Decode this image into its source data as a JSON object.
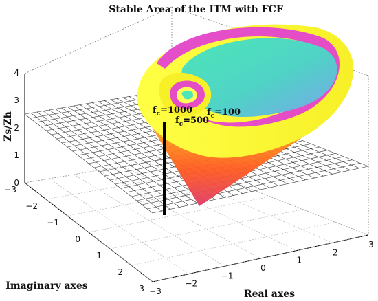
{
  "chart_data": {
    "type": "surface3d",
    "title": "Stable Area of the ITM with FCF",
    "xlabel": "Real axes",
    "ylabel": "Imaginary axes",
    "zlabel": "Zs/Zh",
    "xlim": [
      -3,
      3
    ],
    "ylim": [
      -3,
      3
    ],
    "zlim": [
      0,
      4
    ],
    "xticks": [
      "−3",
      "−2",
      "−1",
      "0",
      "1",
      "2",
      "3"
    ],
    "yticks": [
      "−3",
      "−2",
      "−1",
      "0",
      "1",
      "2",
      "3"
    ],
    "zticks": [
      "0",
      "1",
      "2",
      "3",
      "4"
    ],
    "grid": true,
    "reference_plane_z": 2.5,
    "series": [
      {
        "name": "f_c=1000",
        "value": 1000,
        "color": "#e23bd8"
      },
      {
        "name": "f_c=500",
        "value": 500,
        "color": "#ffff33"
      },
      {
        "name": "f_c=100",
        "value": 100,
        "color": "#5cefb0"
      }
    ],
    "annotations": [
      {
        "base": "f",
        "sub": "c",
        "text": "=1000"
      },
      {
        "base": "f",
        "sub": "c",
        "text": "=500"
      },
      {
        "base": "f",
        "sub": "c",
        "text": "=100"
      }
    ]
  }
}
